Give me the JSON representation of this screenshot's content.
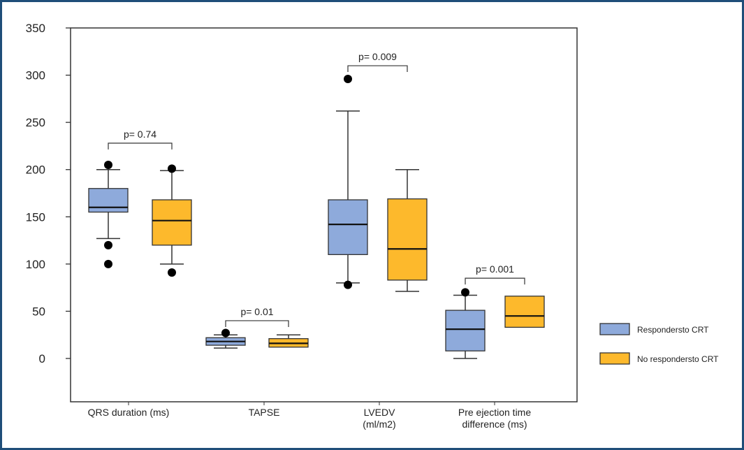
{
  "chart_data": {
    "type": "boxplot",
    "ylim": [
      -45,
      350
    ],
    "yticks": [
      0,
      50,
      100,
      150,
      200,
      250,
      300,
      350
    ],
    "grid": false,
    "legend_placement": "right",
    "series": [
      {
        "name": "Respondersto CRT",
        "color": "#8eaadb"
      },
      {
        "name": "No respondersto CRT",
        "color": "#fdb92c"
      }
    ],
    "categories": [
      {
        "label": [
          "QRS duration (ms)"
        ],
        "p_value": "p= 0.74",
        "bracket_y": 228,
        "boxes": [
          {
            "whisker_low": 127,
            "q1": 155,
            "median": 160,
            "q3": 180,
            "whisker_high": 200,
            "outliers": [
              205,
              120,
              100
            ]
          },
          {
            "whisker_low": 100,
            "q1": 120,
            "median": 146,
            "q3": 168,
            "whisker_high": 199,
            "outliers": [
              201,
              91
            ]
          }
        ]
      },
      {
        "label": [
          "TAPSE"
        ],
        "p_value": "p= 0.01",
        "bracket_y": 40,
        "boxes": [
          {
            "whisker_low": 11,
            "q1": 14,
            "median": 18,
            "q3": 22,
            "whisker_high": 25,
            "outliers": [
              27
            ]
          },
          {
            "whisker_low": 12,
            "q1": 12,
            "median": 16,
            "q3": 21,
            "whisker_high": 25,
            "outliers": []
          }
        ]
      },
      {
        "label": [
          "LVEDV",
          "(ml/m2)"
        ],
        "p_value": "p= 0.009",
        "bracket_y": 310,
        "boxes": [
          {
            "whisker_low": 80,
            "q1": 110,
            "median": 142,
            "q3": 168,
            "whisker_high": 262,
            "outliers": [
              296,
              78
            ]
          },
          {
            "whisker_low": 71,
            "q1": 83,
            "median": 116,
            "q3": 169,
            "whisker_high": 200,
            "outliers": []
          }
        ]
      },
      {
        "label": [
          "Pre ejection time",
          "difference (ms)"
        ],
        "p_value": "p= 0.001",
        "bracket_y": 85,
        "boxes": [
          {
            "whisker_low": 0,
            "q1": 8,
            "median": 31,
            "q3": 51,
            "whisker_high": 67,
            "outliers": [
              70
            ]
          },
          {
            "whisker_low": 33,
            "q1": 33,
            "median": 45,
            "q3": 66,
            "whisker_high": 66,
            "outliers": []
          }
        ]
      }
    ]
  }
}
